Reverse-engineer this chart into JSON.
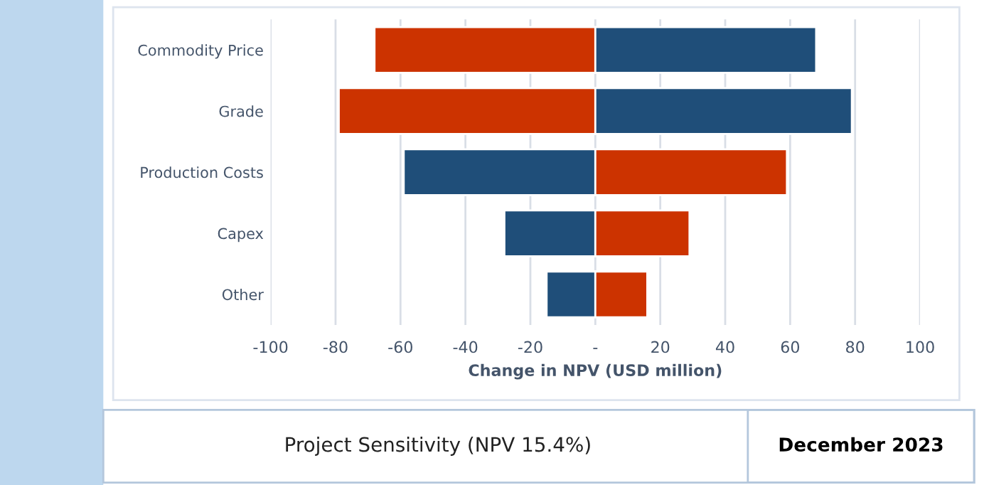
{
  "chart_data": {
    "type": "bar",
    "orientation": "horizontal",
    "stacked": true,
    "title": "Project Sensitivity (NPV 15.4%)",
    "annotations": [
      "December 2023"
    ],
    "xlabel": "Change in NPV (USD million)",
    "categories": [
      "Commodity Price",
      "Grade",
      "Production Costs",
      "Capex",
      "Other"
    ],
    "series": [
      {
        "values": [
          -68,
          -79,
          -59,
          -28,
          -15
        ],
        "colors": [
          "#cc3300",
          "#cc3300",
          "#1f4e79",
          "#1f4e79",
          "#1f4e79"
        ]
      },
      {
        "values": [
          68,
          79,
          59,
          29,
          16
        ],
        "colors": [
          "#1f4e79",
          "#1f4e79",
          "#cc3300",
          "#cc3300",
          "#cc3300"
        ]
      }
    ],
    "xlim": [
      -100,
      100
    ],
    "xticks": [
      -100,
      -80,
      -60,
      -40,
      -20,
      {
        "value": 0,
        "label": "-"
      },
      20,
      40,
      60,
      80,
      100
    ],
    "grid": "x",
    "legend": false
  }
}
